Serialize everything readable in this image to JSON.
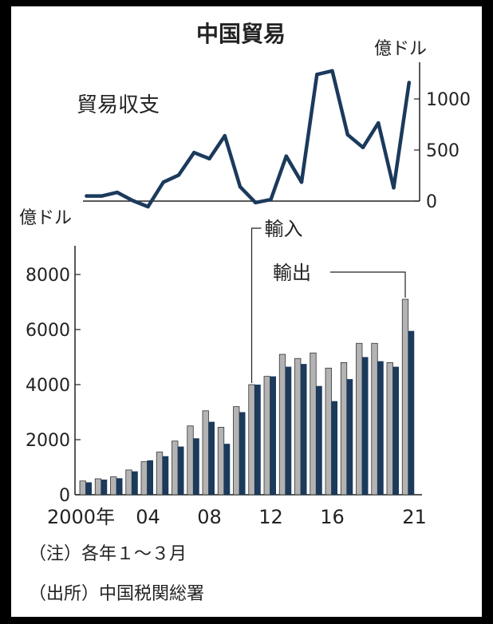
{
  "title": "中国貿易",
  "colors": {
    "exports": "#1b3a5c",
    "imports": "#b3b3b3",
    "balance": "#1b3a5c",
    "text": "#222222"
  },
  "chart_data": [
    {
      "type": "line",
      "title": "貿易収支",
      "unit_right": "億ドル",
      "x": [
        "2000",
        "2001",
        "2002",
        "2003",
        "2004",
        "2005",
        "2006",
        "2007",
        "2008",
        "2009",
        "2010",
        "2011",
        "2012",
        "2013",
        "2014",
        "2015",
        "2016",
        "2017",
        "2018",
        "2019",
        "2020",
        "2021"
      ],
      "series": [
        {
          "values": [
            50,
            50,
            85,
            5,
            -55,
            185,
            255,
            475,
            415,
            640,
            140,
            -15,
            15,
            440,
            185,
            1240,
            1275,
            650,
            525,
            765,
            130,
            1160
          ]
        }
      ],
      "yticks": [
        0,
        500,
        1000
      ],
      "ylim": [
        -100,
        1350
      ],
      "grid": false
    },
    {
      "type": "bar",
      "unit_left": "億ドル",
      "x": [
        "2000",
        "2001",
        "2002",
        "2003",
        "2004",
        "2005",
        "2006",
        "2007",
        "2008",
        "2009",
        "2010",
        "2011",
        "2012",
        "2013",
        "2014",
        "2015",
        "2016",
        "2017",
        "2018",
        "2019",
        "2020",
        "2021"
      ],
      "xtick_labels": [
        "2000年",
        "04",
        "08",
        "12",
        "16",
        "21"
      ],
      "series": [
        {
          "name": "輸入",
          "values": [
            500,
            580,
            650,
            900,
            1200,
            1550,
            1950,
            2500,
            3050,
            2450,
            3200,
            4000,
            4300,
            5100,
            4950,
            5150,
            4600,
            4800,
            5500,
            5500,
            4800,
            7100
          ]
        },
        {
          "name": "輸出",
          "values": [
            450,
            550,
            600,
            850,
            1250,
            1400,
            1750,
            2050,
            2650,
            1850,
            3000,
            4000,
            4300,
            4650,
            4750,
            3950,
            3400,
            4200,
            5000,
            4850,
            4650,
            5950
          ]
        }
      ],
      "yticks": [
        0,
        2000,
        4000,
        6000,
        8000
      ],
      "ylim": [
        0,
        8800
      ],
      "grid": false
    }
  ],
  "notes": [
    "（注）各年１～３月",
    "（出所）中国税関総署"
  ]
}
